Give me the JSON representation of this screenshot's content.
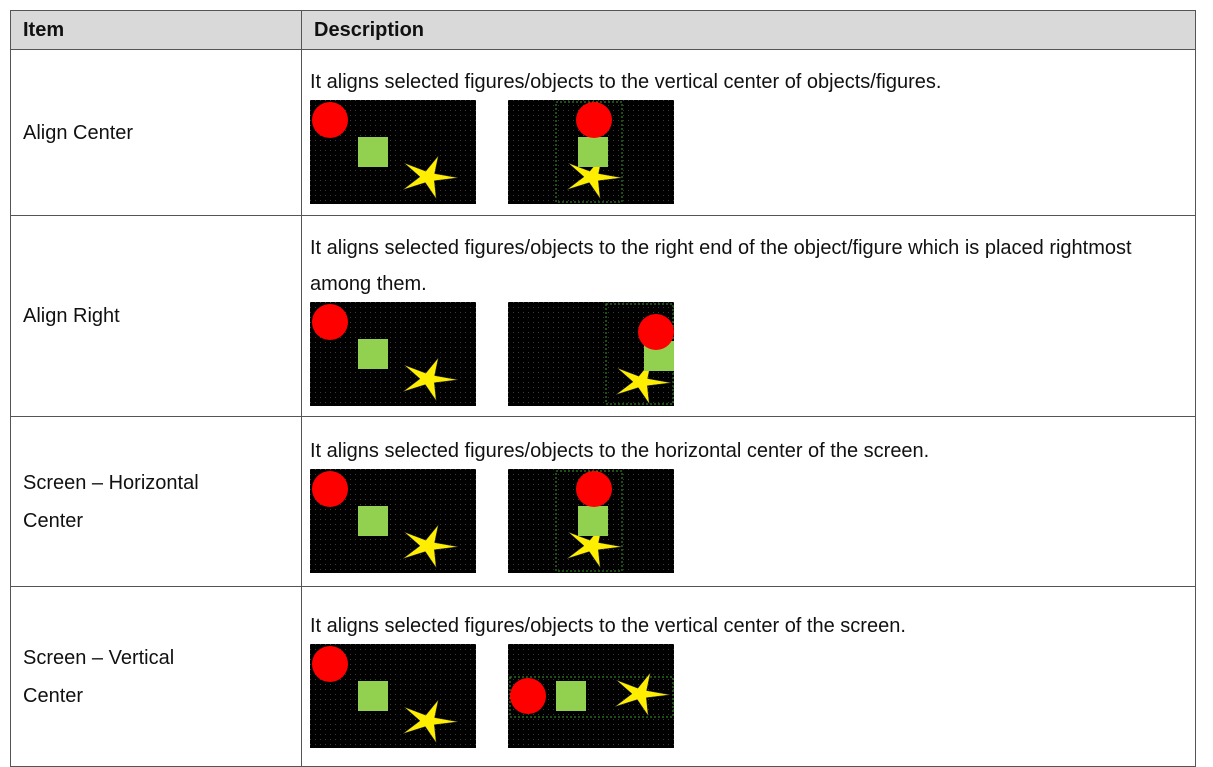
{
  "header": {
    "item": "Item",
    "description": "Description"
  },
  "table": {
    "rows": [
      {
        "item": "Align Center",
        "description": "It aligns selected figures/objects to the vertical center of objects/figures."
      },
      {
        "item": "Align Right",
        "description": "It aligns selected figures/objects to the right end of the object/figure which is placed rightmost among them."
      },
      {
        "item": "Screen – Horizontal Center",
        "description": "It aligns selected figures/objects to the horizontal center of the screen."
      },
      {
        "item": "Screen – Vertical Center",
        "description": "It aligns selected figures/objects to the vertical center of the screen."
      }
    ]
  }
}
